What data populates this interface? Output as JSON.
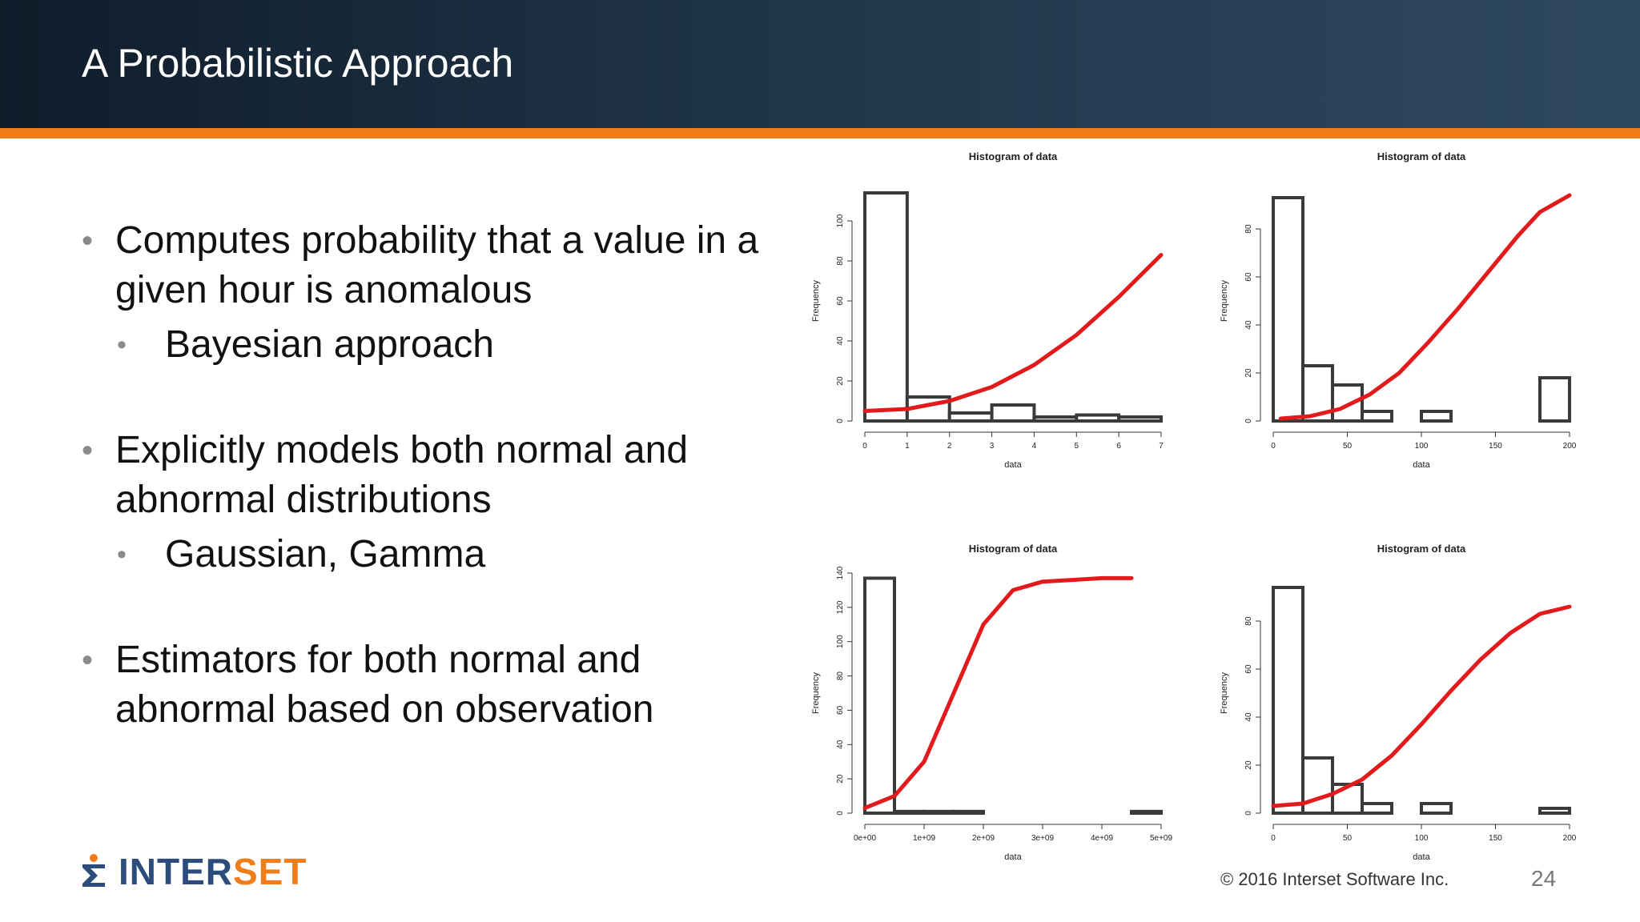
{
  "slide": {
    "title": "A Probabilistic Approach",
    "bullets": [
      {
        "text": "Computes probability that a value in a given hour is anomalous",
        "sub": [
          "Bayesian approach"
        ]
      },
      {
        "text": "Explicitly models both normal and abnormal distributions",
        "sub": [
          "Gaussian, Gamma"
        ]
      },
      {
        "text": "Estimators for both normal and abnormal based on observation",
        "sub": []
      }
    ]
  },
  "footer": {
    "logo_text_main": "INTER",
    "logo_text_accent": "SET",
    "copyright": "© 2016  Interset  Software  Inc.",
    "page_number": "24",
    "brand_colors": {
      "navy": "#2c4d7c",
      "orange": "#f07c1a"
    },
    "logo_icon": "sigma-icon"
  },
  "chart_data": [
    {
      "type": "bar",
      "title": "Histogram of data",
      "xlabel": "data",
      "ylabel": "Frequency",
      "xlim": [
        0,
        7
      ],
      "ylim": [
        0,
        120
      ],
      "xticks": [
        "0",
        "1",
        "2",
        "3",
        "4",
        "5",
        "6",
        "7"
      ],
      "yticks": [
        "0",
        "20",
        "40",
        "60",
        "80",
        "100"
      ],
      "bins": [
        {
          "x0": 0,
          "x1": 1,
          "count": 114
        },
        {
          "x0": 1,
          "x1": 2,
          "count": 12
        },
        {
          "x0": 2,
          "x1": 3,
          "count": 4
        },
        {
          "x0": 3,
          "x1": 4,
          "count": 8
        },
        {
          "x0": 4,
          "x1": 5,
          "count": 2
        },
        {
          "x0": 5,
          "x1": 6,
          "count": 3
        },
        {
          "x0": 6,
          "x1": 7,
          "count": 2
        }
      ],
      "curve": {
        "color": "#e31a1c",
        "x": [
          0,
          1,
          2,
          3,
          4,
          5,
          6,
          7
        ],
        "y": [
          5,
          6,
          10,
          17,
          28,
          43,
          62,
          83
        ]
      }
    },
    {
      "type": "bar",
      "title": "Histogram of data",
      "xlabel": "data",
      "ylabel": "Frequency",
      "xlim": [
        0,
        200
      ],
      "ylim": [
        0,
        100
      ],
      "xticks": [
        "0",
        "50",
        "100",
        "150",
        "200"
      ],
      "yticks": [
        "0",
        "20",
        "40",
        "60",
        "80"
      ],
      "bins": [
        {
          "x0": 0,
          "x1": 20,
          "count": 93
        },
        {
          "x0": 20,
          "x1": 40,
          "count": 23
        },
        {
          "x0": 40,
          "x1": 60,
          "count": 15
        },
        {
          "x0": 60,
          "x1": 80,
          "count": 4
        },
        {
          "x0": 100,
          "x1": 120,
          "count": 4
        },
        {
          "x0": 180,
          "x1": 200,
          "count": 18
        }
      ],
      "curve": {
        "color": "#e31a1c",
        "x": [
          5,
          25,
          45,
          65,
          85,
          105,
          125,
          145,
          165,
          180,
          200
        ],
        "y": [
          1,
          2,
          5,
          11,
          20,
          33,
          47,
          62,
          77,
          87,
          94
        ]
      }
    },
    {
      "type": "bar",
      "title": "Histogram of data",
      "xlabel": "data",
      "ylabel": "Frequency",
      "xlim": [
        0,
        5000000000
      ],
      "ylim": [
        0,
        140
      ],
      "xticks": [
        "0e+00",
        "1e+09",
        "2e+09",
        "3e+09",
        "4e+09",
        "5e+09"
      ],
      "yticks": [
        "0",
        "20",
        "40",
        "60",
        "80",
        "100",
        "120",
        "140"
      ],
      "bins": [
        {
          "x0": 0,
          "x1": 500000000,
          "count": 137
        },
        {
          "x0": 500000000,
          "x1": 1000000000,
          "count": 1
        },
        {
          "x0": 1000000000,
          "x1": 1500000000,
          "count": 1
        },
        {
          "x0": 1500000000,
          "x1": 2000000000,
          "count": 1
        },
        {
          "x0": 4500000000,
          "x1": 5000000000,
          "count": 1
        }
      ],
      "curve": {
        "color": "#e31a1c",
        "x": [
          0,
          500000000,
          1000000000,
          1500000000,
          2000000000,
          2500000000,
          3000000000,
          3500000000,
          4000000000,
          4500000000
        ],
        "y": [
          3,
          10,
          30,
          70,
          110,
          130,
          135,
          136,
          137,
          137
        ]
      }
    },
    {
      "type": "bar",
      "title": "Histogram of data",
      "xlabel": "data",
      "ylabel": "Frequency",
      "xlim": [
        0,
        200
      ],
      "ylim": [
        0,
        100
      ],
      "xticks": [
        "0",
        "50",
        "100",
        "150",
        "200"
      ],
      "yticks": [
        "0",
        "20",
        "40",
        "60",
        "80"
      ],
      "bins": [
        {
          "x0": 0,
          "x1": 20,
          "count": 94
        },
        {
          "x0": 20,
          "x1": 40,
          "count": 23
        },
        {
          "x0": 40,
          "x1": 60,
          "count": 12
        },
        {
          "x0": 60,
          "x1": 80,
          "count": 4
        },
        {
          "x0": 100,
          "x1": 120,
          "count": 4
        },
        {
          "x0": 180,
          "x1": 200,
          "count": 2
        }
      ],
      "curve": {
        "color": "#e31a1c",
        "x": [
          0,
          20,
          40,
          60,
          80,
          100,
          120,
          140,
          160,
          180,
          200
        ],
        "y": [
          3,
          4,
          8,
          14,
          24,
          37,
          51,
          64,
          75,
          83,
          86
        ]
      }
    }
  ]
}
